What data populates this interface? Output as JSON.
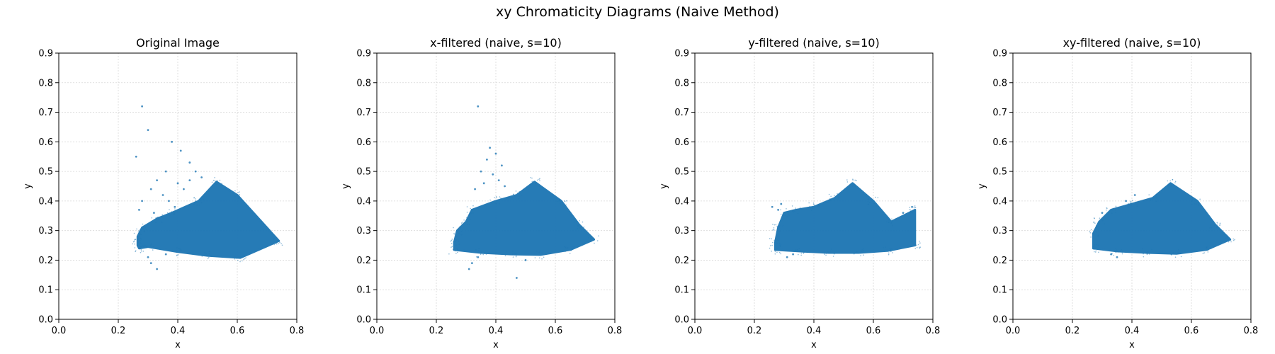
{
  "title": "xy Chromaticity Diagrams (Naive Method)",
  "accent_color": "#1f77b4",
  "chart_data": [
    {
      "type": "scatter",
      "title": "Original Image",
      "xlabel": "x",
      "ylabel": "y",
      "xlim": [
        0.0,
        0.8
      ],
      "ylim": [
        0.0,
        0.9
      ],
      "xticks": [
        "0.0",
        "0.2",
        "0.4",
        "0.6",
        "0.8"
      ],
      "yticks": [
        "0.0",
        "0.1",
        "0.2",
        "0.3",
        "0.4",
        "0.5",
        "0.6",
        "0.7",
        "0.8",
        "0.9"
      ],
      "grid": true,
      "series": [
        {
          "color": "#1f77b4",
          "dense_region": [
            [
              0.27,
              0.24
            ],
            [
              0.3,
              0.245
            ],
            [
              0.4,
              0.228
            ],
            [
              0.5,
              0.215
            ],
            [
              0.61,
              0.208
            ],
            [
              0.74,
              0.265
            ],
            [
              0.6,
              0.42
            ],
            [
              0.53,
              0.465
            ],
            [
              0.47,
              0.4
            ],
            [
              0.38,
              0.36
            ],
            [
              0.33,
              0.34
            ],
            [
              0.28,
              0.31
            ],
            [
              0.265,
              0.28
            ],
            [
              0.265,
              0.25
            ]
          ],
          "points": [
            [
              0.28,
              0.72
            ],
            [
              0.3,
              0.64
            ],
            [
              0.38,
              0.6
            ],
            [
              0.26,
              0.55
            ],
            [
              0.41,
              0.57
            ],
            [
              0.44,
              0.53
            ],
            [
              0.46,
              0.5
            ],
            [
              0.48,
              0.48
            ],
            [
              0.36,
              0.5
            ],
            [
              0.33,
              0.47
            ],
            [
              0.4,
              0.46
            ],
            [
              0.31,
              0.44
            ],
            [
              0.35,
              0.42
            ],
            [
              0.28,
              0.4
            ],
            [
              0.39,
              0.38
            ],
            [
              0.32,
              0.36
            ],
            [
              0.27,
              0.37
            ],
            [
              0.36,
              0.22
            ],
            [
              0.33,
              0.17
            ],
            [
              0.31,
              0.19
            ],
            [
              0.3,
              0.21
            ],
            [
              0.42,
              0.44
            ],
            [
              0.44,
              0.47
            ],
            [
              0.37,
              0.4
            ]
          ]
        }
      ]
    },
    {
      "type": "scatter",
      "title": "x-filtered (naive, s=10)",
      "xlabel": "x",
      "ylabel": "y",
      "xlim": [
        0.0,
        0.8
      ],
      "ylim": [
        0.0,
        0.9
      ],
      "xticks": [
        "0.0",
        "0.2",
        "0.4",
        "0.6",
        "0.8"
      ],
      "yticks": [
        "0.0",
        "0.1",
        "0.2",
        "0.3",
        "0.4",
        "0.5",
        "0.6",
        "0.7",
        "0.8",
        "0.9"
      ],
      "grid": true,
      "series": [
        {
          "color": "#1f77b4",
          "dense_region": [
            [
              0.26,
              0.235
            ],
            [
              0.35,
              0.225
            ],
            [
              0.45,
              0.22
            ],
            [
              0.55,
              0.218
            ],
            [
              0.65,
              0.235
            ],
            [
              0.73,
              0.27
            ],
            [
              0.68,
              0.32
            ],
            [
              0.62,
              0.4
            ],
            [
              0.53,
              0.465
            ],
            [
              0.47,
              0.42
            ],
            [
              0.4,
              0.4
            ],
            [
              0.32,
              0.37
            ],
            [
              0.3,
              0.33
            ],
            [
              0.27,
              0.3
            ],
            [
              0.26,
              0.26
            ]
          ],
          "points": [
            [
              0.34,
              0.72
            ],
            [
              0.38,
              0.58
            ],
            [
              0.4,
              0.56
            ],
            [
              0.37,
              0.54
            ],
            [
              0.42,
              0.52
            ],
            [
              0.35,
              0.5
            ],
            [
              0.39,
              0.49
            ],
            [
              0.41,
              0.47
            ],
            [
              0.36,
              0.46
            ],
            [
              0.43,
              0.45
            ],
            [
              0.33,
              0.44
            ],
            [
              0.31,
              0.17
            ],
            [
              0.32,
              0.19
            ],
            [
              0.34,
              0.21
            ],
            [
              0.5,
              0.2
            ],
            [
              0.47,
              0.14
            ]
          ]
        }
      ]
    },
    {
      "type": "scatter",
      "title": "y-filtered (naive, s=10)",
      "xlabel": "x",
      "ylabel": "y",
      "xlim": [
        0.0,
        0.8
      ],
      "ylim": [
        0.0,
        0.9
      ],
      "xticks": [
        "0.0",
        "0.2",
        "0.4",
        "0.6",
        "0.8"
      ],
      "yticks": [
        "0.0",
        "0.1",
        "0.2",
        "0.3",
        "0.4",
        "0.5",
        "0.6",
        "0.7",
        "0.8",
        "0.9"
      ],
      "grid": true,
      "series": [
        {
          "color": "#1f77b4",
          "dense_region": [
            [
              0.27,
              0.235
            ],
            [
              0.35,
              0.23
            ],
            [
              0.45,
              0.225
            ],
            [
              0.55,
              0.225
            ],
            [
              0.65,
              0.232
            ],
            [
              0.74,
              0.25
            ],
            [
              0.74,
              0.37
            ],
            [
              0.66,
              0.33
            ],
            [
              0.6,
              0.4
            ],
            [
              0.53,
              0.46
            ],
            [
              0.47,
              0.41
            ],
            [
              0.4,
              0.38
            ],
            [
              0.34,
              0.37
            ],
            [
              0.3,
              0.36
            ],
            [
              0.28,
              0.31
            ],
            [
              0.27,
              0.26
            ]
          ],
          "points": [
            [
              0.26,
              0.38
            ],
            [
              0.28,
              0.37
            ],
            [
              0.31,
              0.21
            ],
            [
              0.33,
              0.22
            ],
            [
              0.73,
              0.38
            ],
            [
              0.7,
              0.36
            ],
            [
              0.29,
              0.39
            ]
          ]
        }
      ]
    },
    {
      "type": "scatter",
      "title": "xy-filtered (naive, s=10)",
      "xlabel": "x",
      "ylabel": "y",
      "xlim": [
        0.0,
        0.8
      ],
      "ylim": [
        0.0,
        0.9
      ],
      "xticks": [
        "0.0",
        "0.2",
        "0.4",
        "0.6",
        "0.8"
      ],
      "yticks": [
        "0.0",
        "0.1",
        "0.2",
        "0.3",
        "0.4",
        "0.5",
        "0.6",
        "0.7",
        "0.8",
        "0.9"
      ],
      "grid": true,
      "series": [
        {
          "color": "#1f77b4",
          "dense_region": [
            [
              0.27,
              0.24
            ],
            [
              0.35,
              0.23
            ],
            [
              0.45,
              0.225
            ],
            [
              0.55,
              0.222
            ],
            [
              0.65,
              0.235
            ],
            [
              0.73,
              0.27
            ],
            [
              0.68,
              0.32
            ],
            [
              0.62,
              0.4
            ],
            [
              0.53,
              0.46
            ],
            [
              0.47,
              0.41
            ],
            [
              0.4,
              0.39
            ],
            [
              0.33,
              0.37
            ],
            [
              0.29,
              0.33
            ],
            [
              0.27,
              0.29
            ]
          ],
          "points": [
            [
              0.33,
              0.22
            ],
            [
              0.35,
              0.21
            ],
            [
              0.38,
              0.4
            ],
            [
              0.41,
              0.42
            ],
            [
              0.3,
              0.36
            ]
          ]
        }
      ]
    }
  ]
}
